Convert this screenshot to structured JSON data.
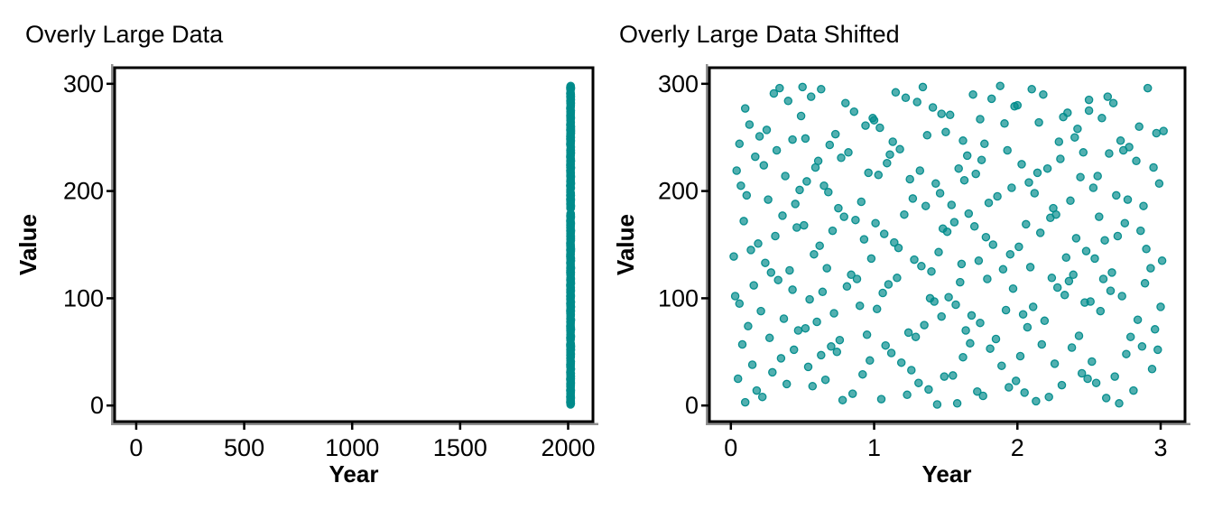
{
  "page": {
    "background": "#ffffff"
  },
  "style": {
    "point_fill": "#008B8B",
    "point_fill_opacity": 0.68,
    "point_stroke": "#008B8B",
    "point_stroke_opacity": 0.95,
    "point_radius": 4.1,
    "panel_border_color": "#000000",
    "axis_line_color": "#909090",
    "text_color": "#000000"
  },
  "chart_data": [
    {
      "type": "scatter",
      "title": "Overly Large Data",
      "xlabel": "Year",
      "ylabel": "Value",
      "x_ticks": [
        0,
        500,
        1000,
        1500,
        2000
      ],
      "y_ticks": [
        0,
        100,
        200,
        300
      ],
      "xlim": [
        -100,
        2115
      ],
      "ylim": [
        -15,
        315
      ],
      "grid": "off",
      "legend": "none",
      "x_offset_from_shifted": 2010,
      "points_note": "identical points to the shifted panel with x + 2010, forming a vertical strip at x ≈ 2010-2013"
    },
    {
      "type": "scatter",
      "title": "Overly Large Data Shifted",
      "xlabel": "Year",
      "ylabel": "Value",
      "x_ticks": [
        0,
        1,
        2,
        3
      ],
      "y_ticks": [
        0,
        100,
        200,
        300
      ],
      "xlim": [
        -0.15,
        3.17
      ],
      "ylim": [
        -15,
        315
      ],
      "grid": "off",
      "legend": "none",
      "n_points": 300,
      "points": [
        [
          0.1,
          3
        ],
        [
          0.22,
          8
        ],
        [
          0.05,
          25
        ],
        [
          0.35,
          44
        ],
        [
          0.18,
          14
        ],
        [
          0.44,
          52
        ],
        [
          0.29,
          31
        ],
        [
          0.08,
          57
        ],
        [
          0.39,
          20
        ],
        [
          0.15,
          38
        ],
        [
          0.06,
          95
        ],
        [
          0.27,
          63
        ],
        [
          0.43,
          108
        ],
        [
          0.12,
          74
        ],
        [
          0.33,
          117
        ],
        [
          0.21,
          88
        ],
        [
          0.47,
          70
        ],
        [
          0.03,
          102
        ],
        [
          0.37,
          81
        ],
        [
          0.16,
          112
        ],
        [
          0.24,
          133
        ],
        [
          0.09,
          172
        ],
        [
          0.41,
          126
        ],
        [
          0.31,
          158
        ],
        [
          0.14,
          145
        ],
        [
          0.46,
          166
        ],
        [
          0.02,
          139
        ],
        [
          0.36,
          177
        ],
        [
          0.19,
          151
        ],
        [
          0.28,
          124
        ],
        [
          0.11,
          196
        ],
        [
          0.32,
          238
        ],
        [
          0.07,
          205
        ],
        [
          0.45,
          188
        ],
        [
          0.23,
          224
        ],
        [
          0.38,
          214
        ],
        [
          0.17,
          232
        ],
        [
          0.48,
          201
        ],
        [
          0.04,
          219
        ],
        [
          0.26,
          192
        ],
        [
          0.13,
          262
        ],
        [
          0.34,
          296
        ],
        [
          0.2,
          251
        ],
        [
          0.49,
          270
        ],
        [
          0.06,
          244
        ],
        [
          0.4,
          284
        ],
        [
          0.25,
          257
        ],
        [
          0.3,
          291
        ],
        [
          0.1,
          277
        ],
        [
          0.43,
          248
        ],
        [
          0.57,
          18
        ],
        [
          0.78,
          5
        ],
        [
          0.63,
          47
        ],
        [
          0.92,
          29
        ],
        [
          0.7,
          55
        ],
        [
          0.85,
          11
        ],
        [
          0.54,
          36
        ],
        [
          0.97,
          42
        ],
        [
          0.66,
          24
        ],
        [
          0.74,
          50
        ],
        [
          0.6,
          78
        ],
        [
          0.81,
          111
        ],
        [
          0.55,
          99
        ],
        [
          0.95,
          66
        ],
        [
          0.72,
          86
        ],
        [
          0.88,
          118
        ],
        [
          0.64,
          106
        ],
        [
          0.52,
          72
        ],
        [
          0.9,
          93
        ],
        [
          0.76,
          61
        ],
        [
          0.58,
          141
        ],
        [
          0.79,
          176
        ],
        [
          0.67,
          128
        ],
        [
          0.93,
          155
        ],
        [
          0.51,
          168
        ],
        [
          0.84,
          122
        ],
        [
          0.62,
          149
        ],
        [
          0.98,
          137
        ],
        [
          0.71,
          163
        ],
        [
          0.87,
          173
        ],
        [
          0.53,
          209
        ],
        [
          0.75,
          184
        ],
        [
          0.61,
          228
        ],
        [
          0.96,
          217
        ],
        [
          0.68,
          199
        ],
        [
          0.82,
          236
        ],
        [
          0.59,
          222
        ],
        [
          0.91,
          190
        ],
        [
          0.65,
          205
        ],
        [
          0.77,
          231
        ],
        [
          0.5,
          297
        ],
        [
          0.73,
          253
        ],
        [
          0.56,
          288
        ],
        [
          0.94,
          261
        ],
        [
          0.69,
          243
        ],
        [
          0.86,
          274
        ],
        [
          0.63,
          295
        ],
        [
          0.99,
          268
        ],
        [
          0.8,
          282
        ],
        [
          0.52,
          249
        ],
        [
          1.05,
          6
        ],
        [
          1.26,
          33
        ],
        [
          1.12,
          49
        ],
        [
          1.44,
          1
        ],
        [
          1.31,
          21
        ],
        [
          1.08,
          56
        ],
        [
          1.38,
          15
        ],
        [
          1.19,
          40
        ],
        [
          1.49,
          27
        ],
        [
          1.23,
          10
        ],
        [
          1.02,
          90
        ],
        [
          1.24,
          68
        ],
        [
          1.1,
          113
        ],
        [
          1.42,
          97
        ],
        [
          1.35,
          75
        ],
        [
          1.06,
          105
        ],
        [
          1.47,
          83
        ],
        [
          1.16,
          119
        ],
        [
          1.29,
          64
        ],
        [
          1.39,
          100
        ],
        [
          1.14,
          152
        ],
        [
          1.33,
          130
        ],
        [
          1.01,
          170
        ],
        [
          1.45,
          143
        ],
        [
          1.21,
          178
        ],
        [
          1.07,
          160
        ],
        [
          1.4,
          125
        ],
        [
          1.28,
          136
        ],
        [
          1.48,
          165
        ],
        [
          1.17,
          147
        ],
        [
          1.03,
          215
        ],
        [
          1.27,
          193
        ],
        [
          1.11,
          234
        ],
        [
          1.43,
          207
        ],
        [
          1.36,
          186
        ],
        [
          1.09,
          226
        ],
        [
          1.32,
          219
        ],
        [
          1.18,
          239
        ],
        [
          1.46,
          198
        ],
        [
          1.25,
          211
        ],
        [
          1.04,
          259
        ],
        [
          1.22,
          287
        ],
        [
          1.13,
          246
        ],
        [
          1.41,
          278
        ],
        [
          1.34,
          297
        ],
        [
          1.0,
          266
        ],
        [
          1.37,
          252
        ],
        [
          1.15,
          292
        ],
        [
          1.47,
          272
        ],
        [
          1.3,
          283
        ],
        [
          1.55,
          28
        ],
        [
          1.76,
          9
        ],
        [
          1.62,
          45
        ],
        [
          1.94,
          17
        ],
        [
          1.81,
          53
        ],
        [
          1.58,
          2
        ],
        [
          1.89,
          37
        ],
        [
          1.67,
          58
        ],
        [
          1.99,
          23
        ],
        [
          1.72,
          13
        ],
        [
          1.52,
          101
        ],
        [
          1.74,
          77
        ],
        [
          1.6,
          115
        ],
        [
          1.92,
          89
        ],
        [
          1.85,
          62
        ],
        [
          1.57,
          94
        ],
        [
          1.97,
          109
        ],
        [
          1.64,
          70
        ],
        [
          1.79,
          118
        ],
        [
          1.68,
          84
        ],
        [
          1.51,
          162
        ],
        [
          1.73,
          135
        ],
        [
          1.66,
          179
        ],
        [
          1.9,
          127
        ],
        [
          1.83,
          150
        ],
        [
          1.56,
          171
        ],
        [
          1.95,
          141
        ],
        [
          1.61,
          132
        ],
        [
          1.78,
          157
        ],
        [
          1.7,
          167
        ],
        [
          1.54,
          187
        ],
        [
          1.75,
          229
        ],
        [
          1.63,
          210
        ],
        [
          1.93,
          238
        ],
        [
          1.86,
          195
        ],
        [
          1.59,
          221
        ],
        [
          1.96,
          203
        ],
        [
          1.65,
          233
        ],
        [
          1.8,
          189
        ],
        [
          1.71,
          216
        ],
        [
          1.53,
          271
        ],
        [
          1.77,
          244
        ],
        [
          1.69,
          290
        ],
        [
          1.91,
          263
        ],
        [
          1.88,
          298
        ],
        [
          1.5,
          255
        ],
        [
          1.98,
          279
        ],
        [
          1.62,
          247
        ],
        [
          1.82,
          286
        ],
        [
          1.74,
          267
        ],
        [
          2.05,
          12
        ],
        [
          2.26,
          39
        ],
        [
          2.13,
          4
        ],
        [
          2.45,
          30
        ],
        [
          2.38,
          54
        ],
        [
          2.02,
          46
        ],
        [
          2.31,
          19
        ],
        [
          2.17,
          57
        ],
        [
          2.49,
          25
        ],
        [
          2.22,
          8
        ],
        [
          2.07,
          73
        ],
        [
          2.28,
          110
        ],
        [
          2.11,
          92
        ],
        [
          2.43,
          65
        ],
        [
          2.36,
          116
        ],
        [
          2.04,
          85
        ],
        [
          2.33,
          103
        ],
        [
          2.19,
          79
        ],
        [
          2.47,
          96
        ],
        [
          2.24,
          119
        ],
        [
          2.01,
          148
        ],
        [
          2.23,
          175
        ],
        [
          2.09,
          129
        ],
        [
          2.41,
          156
        ],
        [
          2.34,
          138
        ],
        [
          2.06,
          169
        ],
        [
          2.39,
          122
        ],
        [
          2.16,
          161
        ],
        [
          2.48,
          144
        ],
        [
          2.27,
          178
        ],
        [
          2.03,
          225
        ],
        [
          2.25,
          184
        ],
        [
          2.14,
          217
        ],
        [
          2.46,
          236
        ],
        [
          2.37,
          191
        ],
        [
          2.08,
          208
        ],
        [
          2.3,
          230
        ],
        [
          2.12,
          198
        ],
        [
          2.44,
          213
        ],
        [
          2.21,
          221
        ],
        [
          2.0,
          280
        ],
        [
          2.29,
          246
        ],
        [
          2.1,
          295
        ],
        [
          2.42,
          258
        ],
        [
          2.35,
          273
        ],
        [
          2.18,
          290
        ],
        [
          2.4,
          250
        ],
        [
          2.15,
          264
        ],
        [
          2.5,
          285
        ],
        [
          2.32,
          269
        ],
        [
          2.55,
          21
        ],
        [
          2.76,
          48
        ],
        [
          2.62,
          7
        ],
        [
          2.94,
          34
        ],
        [
          2.87,
          55
        ],
        [
          2.52,
          41
        ],
        [
          2.81,
          14
        ],
        [
          2.68,
          27
        ],
        [
          2.98,
          52
        ],
        [
          2.71,
          2
        ],
        [
          2.58,
          88
        ],
        [
          2.79,
          64
        ],
        [
          2.65,
          107
        ],
        [
          2.96,
          71
        ],
        [
          2.89,
          114
        ],
        [
          2.51,
          97
        ],
        [
          2.84,
          80
        ],
        [
          2.6,
          118
        ],
        [
          3.0,
          92
        ],
        [
          2.73,
          102
        ],
        [
          2.54,
          137
        ],
        [
          2.75,
          170
        ],
        [
          2.61,
          154
        ],
        [
          2.93,
          128
        ],
        [
          2.86,
          163
        ],
        [
          2.57,
          176
        ],
        [
          2.9,
          146
        ],
        [
          2.66,
          124
        ],
        [
          3.01,
          135
        ],
        [
          2.7,
          158
        ],
        [
          2.53,
          203
        ],
        [
          2.77,
          192
        ],
        [
          2.64,
          235
        ],
        [
          2.95,
          222
        ],
        [
          2.88,
          186
        ],
        [
          2.56,
          214
        ],
        [
          2.83,
          228
        ],
        [
          2.69,
          196
        ],
        [
          2.99,
          207
        ],
        [
          2.74,
          238
        ],
        [
          2.59,
          268
        ],
        [
          2.78,
          241
        ],
        [
          2.63,
          288
        ],
        [
          2.97,
          254
        ],
        [
          2.91,
          296
        ],
        [
          2.5,
          275
        ],
        [
          2.85,
          260
        ],
        [
          2.67,
          282
        ],
        [
          3.02,
          256
        ],
        [
          2.72,
          247
        ]
      ]
    }
  ]
}
